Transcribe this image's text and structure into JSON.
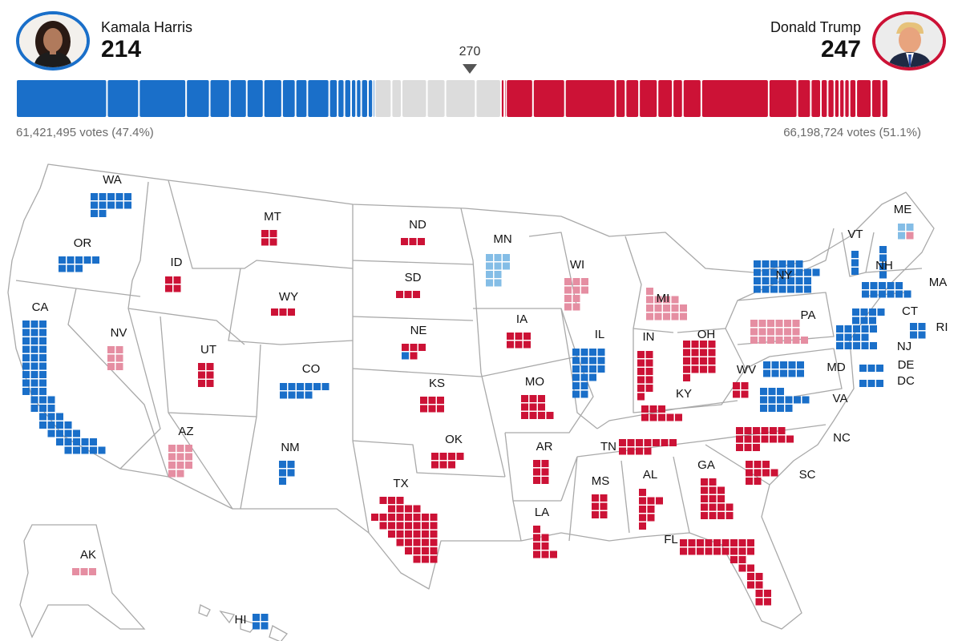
{
  "colors": {
    "dem": "#1a6fc9",
    "dem_lean": "#84bde6",
    "rep": "#cc1236",
    "rep_lean": "#e58ea2",
    "uncalled": "#dcdcdc",
    "border": "#a9a9a9"
  },
  "header": {
    "harris": {
      "name": "Kamala Harris",
      "ev": "214",
      "votes": "61,421,495 votes (47.4%)",
      "avatar_icon": "harris-portrait"
    },
    "trump": {
      "name": "Donald Trump",
      "ev": "247",
      "votes": "66,198,724 votes (51.1%)",
      "avatar_icon": "trump-portrait"
    },
    "threshold": "270"
  },
  "bar": {
    "total": 538,
    "segments": [
      {
        "ev": 54,
        "w": "dem"
      },
      {
        "ev": 19,
        "w": "dem"
      },
      {
        "ev": 28,
        "w": "dem"
      },
      {
        "ev": 14,
        "w": "dem"
      },
      {
        "ev": 12,
        "w": "dem"
      },
      {
        "ev": 10,
        "w": "dem"
      },
      {
        "ev": 10,
        "w": "dem"
      },
      {
        "ev": 11,
        "w": "dem"
      },
      {
        "ev": 8,
        "w": "dem"
      },
      {
        "ev": 7,
        "w": "dem"
      },
      {
        "ev": 13,
        "w": "dem"
      },
      {
        "ev": 5,
        "w": "dem"
      },
      {
        "ev": 4,
        "w": "dem"
      },
      {
        "ev": 4,
        "w": "dem"
      },
      {
        "ev": 3,
        "w": "dem"
      },
      {
        "ev": 3,
        "w": "dem"
      },
      {
        "ev": 4,
        "w": "dem"
      },
      {
        "ev": 3,
        "w": "dem"
      },
      {
        "ev": 1,
        "w": "dem"
      },
      {
        "ev": 10,
        "w": "uncalled"
      },
      {
        "ev": 6,
        "w": "uncalled"
      },
      {
        "ev": 15,
        "w": "uncalled"
      },
      {
        "ev": 11,
        "w": "uncalled"
      },
      {
        "ev": 18,
        "w": "uncalled"
      },
      {
        "ev": 15,
        "w": "uncalled"
      },
      {
        "ev": 2,
        "w": "rep"
      },
      {
        "ev": 1,
        "w": "rep"
      },
      {
        "ev": 16,
        "w": "rep"
      },
      {
        "ev": 19,
        "w": "rep"
      },
      {
        "ev": 30,
        "w": "rep"
      },
      {
        "ev": 6,
        "w": "rep"
      },
      {
        "ev": 8,
        "w": "rep"
      },
      {
        "ev": 11,
        "w": "rep"
      },
      {
        "ev": 9,
        "w": "rep"
      },
      {
        "ev": 6,
        "w": "rep"
      },
      {
        "ev": 11,
        "w": "rep"
      },
      {
        "ev": 40,
        "w": "rep"
      },
      {
        "ev": 17,
        "w": "rep"
      },
      {
        "ev": 8,
        "w": "rep"
      },
      {
        "ev": 6,
        "w": "rep"
      },
      {
        "ev": 4,
        "w": "rep"
      },
      {
        "ev": 4,
        "w": "rep"
      },
      {
        "ev": 3,
        "w": "rep"
      },
      {
        "ev": 3,
        "w": "rep"
      },
      {
        "ev": 3,
        "w": "rep"
      },
      {
        "ev": 4,
        "w": "rep"
      },
      {
        "ev": 9,
        "w": "rep"
      },
      {
        "ev": 6,
        "w": "rep"
      },
      {
        "ev": 4,
        "w": "rep"
      }
    ]
  },
  "states": [
    {
      "abbr": "WA",
      "ev": 12,
      "status": "dem"
    },
    {
      "abbr": "OR",
      "ev": 8,
      "status": "dem"
    },
    {
      "abbr": "CA",
      "ev": 54,
      "status": "dem"
    },
    {
      "abbr": "NV",
      "ev": 6,
      "status": "rep_lean"
    },
    {
      "abbr": "ID",
      "ev": 4,
      "status": "rep"
    },
    {
      "abbr": "MT",
      "ev": 4,
      "status": "rep"
    },
    {
      "abbr": "WY",
      "ev": 3,
      "status": "rep"
    },
    {
      "abbr": "UT",
      "ev": 6,
      "status": "rep"
    },
    {
      "abbr": "AZ",
      "ev": 11,
      "status": "rep_lean"
    },
    {
      "abbr": "CO",
      "ev": 10,
      "status": "dem"
    },
    {
      "abbr": "NM",
      "ev": 5,
      "status": "dem"
    },
    {
      "abbr": "ND",
      "ev": 3,
      "status": "rep"
    },
    {
      "abbr": "SD",
      "ev": 3,
      "status": "rep"
    },
    {
      "abbr": "NE",
      "ev": 5,
      "status": "rep",
      "note": "4 rep, 1 dem"
    },
    {
      "abbr": "KS",
      "ev": 6,
      "status": "rep"
    },
    {
      "abbr": "OK",
      "ev": 7,
      "status": "rep"
    },
    {
      "abbr": "TX",
      "ev": 40,
      "status": "rep"
    },
    {
      "abbr": "MN",
      "ev": 10,
      "status": "dem_lean"
    },
    {
      "abbr": "IA",
      "ev": 6,
      "status": "rep"
    },
    {
      "abbr": "MO",
      "ev": 10,
      "status": "rep"
    },
    {
      "abbr": "AR",
      "ev": 6,
      "status": "rep"
    },
    {
      "abbr": "LA",
      "ev": 8,
      "status": "rep"
    },
    {
      "abbr": "WI",
      "ev": 10,
      "status": "rep_lean"
    },
    {
      "abbr": "IL",
      "ev": 19,
      "status": "dem"
    },
    {
      "abbr": "MI",
      "ev": 15,
      "status": "rep_lean"
    },
    {
      "abbr": "IN",
      "ev": 11,
      "status": "rep"
    },
    {
      "abbr": "OH",
      "ev": 17,
      "status": "rep"
    },
    {
      "abbr": "KY",
      "ev": 8,
      "status": "rep"
    },
    {
      "abbr": "TN",
      "ev": 11,
      "status": "rep"
    },
    {
      "abbr": "MS",
      "ev": 6,
      "status": "rep"
    },
    {
      "abbr": "AL",
      "ev": 9,
      "status": "rep"
    },
    {
      "abbr": "GA",
      "ev": 16,
      "status": "rep"
    },
    {
      "abbr": "FL",
      "ev": 30,
      "status": "rep"
    },
    {
      "abbr": "SC",
      "ev": 9,
      "status": "rep"
    },
    {
      "abbr": "NC",
      "ev": 16,
      "status": "rep"
    },
    {
      "abbr": "VA",
      "ev": 13,
      "status": "dem"
    },
    {
      "abbr": "WV",
      "ev": 4,
      "status": "rep"
    },
    {
      "abbr": "PA",
      "ev": 19,
      "status": "rep_lean"
    },
    {
      "abbr": "NY",
      "ev": 28,
      "status": "dem"
    },
    {
      "abbr": "VT",
      "ev": 3,
      "status": "dem"
    },
    {
      "abbr": "NH",
      "ev": 4,
      "status": "dem"
    },
    {
      "abbr": "ME",
      "ev": 4,
      "status": "mixed",
      "note": "2 dem_lean, 1 dem_lean, 1 rep_lean"
    },
    {
      "abbr": "MA",
      "ev": 11,
      "status": "dem"
    },
    {
      "abbr": "CT",
      "ev": 7,
      "status": "dem"
    },
    {
      "abbr": "RI",
      "ev": 4,
      "status": "dem"
    },
    {
      "abbr": "NJ",
      "ev": 14,
      "status": "dem"
    },
    {
      "abbr": "DE",
      "ev": 3,
      "status": "dem"
    },
    {
      "abbr": "DC",
      "ev": 3,
      "status": "dem"
    },
    {
      "abbr": "MD",
      "ev": 10,
      "status": "dem"
    },
    {
      "abbr": "AK",
      "ev": 3,
      "status": "rep_lean"
    },
    {
      "abbr": "HI",
      "ev": 4,
      "status": "dem"
    }
  ]
}
